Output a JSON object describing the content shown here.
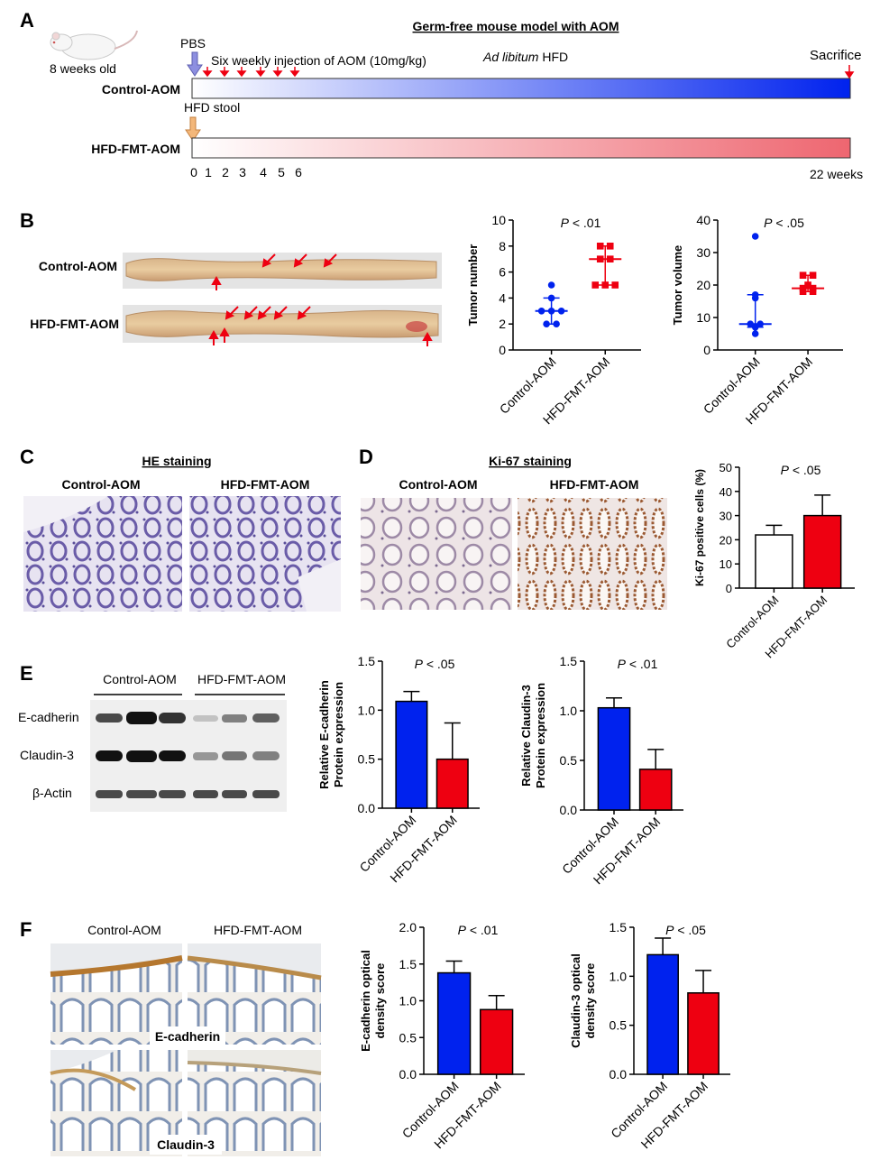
{
  "colors": {
    "blue": "#0022ee",
    "red": "#ee0011",
    "orange_arrow": "#f3b77a",
    "purple_arrow": "#8d8fe0"
  },
  "panelA": {
    "letter": "A",
    "title": "Germ-free mouse model with AOM",
    "age": "8 weeks old",
    "pbs": "PBS",
    "injection": "Six weekly injection of AOM (10mg/kg)",
    "adlib_italic": "Ad libitum",
    "adlib_rest": " HFD",
    "sacrifice": "Sacrifice",
    "control": "Control-AOM",
    "hfd_stool": "HFD stool",
    "hfd": "HFD-FMT-AOM",
    "weeks": [
      "0",
      "1",
      "2",
      "3",
      "4",
      "5",
      "6"
    ],
    "end_week": "22 weeks"
  },
  "panelB": {
    "letter": "B",
    "control": "Control-AOM",
    "hfd": "HFD-FMT-AOM"
  },
  "panelC": {
    "letter": "C",
    "title": "HE staining",
    "control": "Control-AOM",
    "hfd": "HFD-FMT-AOM"
  },
  "panelD": {
    "letter": "D",
    "title": "Ki-67 staining",
    "control": "Control-AOM",
    "hfd": "HFD-FMT-AOM"
  },
  "panelE": {
    "letter": "E",
    "control": "Control-AOM",
    "hfd": "HFD-FMT-AOM",
    "bands": [
      "E-cadherin",
      "Claudin-3",
      "β-Actin"
    ]
  },
  "panelF": {
    "letter": "F",
    "control": "Control-AOM",
    "hfd": "HFD-FMT-AOM",
    "label_ecad": "E-cadherin",
    "label_cld": "Claudin-3"
  },
  "chart_data": [
    {
      "id": "tumor_number",
      "type": "scatter",
      "ylabel": "Tumor number",
      "ylim": [
        0,
        10
      ],
      "yticks": [
        0,
        2,
        4,
        6,
        8,
        10
      ],
      "categories": [
        "Control-AOM",
        "HFD-FMT-AOM"
      ],
      "pvalue": "P < .01",
      "series": [
        {
          "points": [
            2,
            2,
            3,
            3,
            3,
            4,
            5
          ],
          "median": 3,
          "range": [
            2,
            4
          ]
        },
        {
          "points": [
            5,
            5,
            5,
            7,
            7,
            8,
            8
          ],
          "median": 7,
          "range": [
            5,
            8
          ]
        }
      ]
    },
    {
      "id": "tumor_volume",
      "type": "scatter",
      "ylabel": "Tumor volume",
      "ylim": [
        0,
        40
      ],
      "yticks": [
        0,
        10,
        20,
        30,
        40
      ],
      "categories": [
        "Control-AOM",
        "HFD-FMT-AOM"
      ],
      "pvalue": "P < .05",
      "series": [
        {
          "points": [
            5,
            7,
            8,
            8,
            16,
            17,
            35
          ],
          "median": 8,
          "range": [
            7,
            17
          ]
        },
        {
          "points": [
            18,
            18,
            19,
            19,
            20,
            23,
            23
          ],
          "median": 19,
          "range": [
            18,
            23
          ]
        }
      ]
    },
    {
      "id": "ki67",
      "type": "bar",
      "ylabel": "Ki-67 positive cells (%)",
      "ylim": [
        0,
        50
      ],
      "yticks": [
        0,
        10,
        20,
        30,
        40,
        50
      ],
      "categories": [
        "Control-AOM",
        "HFD-FMT-AOM"
      ],
      "values": [
        22,
        30
      ],
      "errors": [
        4,
        8.5
      ],
      "pvalue": "P < .05"
    },
    {
      "id": "ecad_protein",
      "type": "bar",
      "ylabel": [
        "Relative E-cadherin",
        "Protein expression"
      ],
      "ylim": [
        0,
        1.5
      ],
      "yticks": [
        "0.0",
        "0.5",
        "1.0",
        "1.5"
      ],
      "categories": [
        "Control-AOM",
        "HFD-FMT-AOM"
      ],
      "values": [
        1.09,
        0.5
      ],
      "errors": [
        0.1,
        0.37
      ],
      "pvalue": "P < .05"
    },
    {
      "id": "cld_protein",
      "type": "bar",
      "ylabel": [
        "Relative Claudin-3",
        "Protein expression"
      ],
      "ylim": [
        0,
        1.5
      ],
      "yticks": [
        "0.0",
        "0.5",
        "1.0",
        "1.5"
      ],
      "categories": [
        "Control-AOM",
        "HFD-FMT-AOM"
      ],
      "values": [
        1.03,
        0.41
      ],
      "errors": [
        0.1,
        0.2
      ],
      "pvalue": "P < .01"
    },
    {
      "id": "ecad_od",
      "type": "bar",
      "ylabel": [
        "E-cadherin optical",
        "density score"
      ],
      "ylim": [
        0,
        2.0
      ],
      "yticks": [
        "0.0",
        "0.5",
        "1.0",
        "1.5",
        "2.0"
      ],
      "categories": [
        "Control-AOM",
        "HFD-FMT-AOM"
      ],
      "values": [
        1.38,
        0.88
      ],
      "errors": [
        0.16,
        0.19
      ],
      "pvalue": "P < .01"
    },
    {
      "id": "cld_od",
      "type": "bar",
      "ylabel": [
        "Claudin-3 optical",
        "density score"
      ],
      "ylim": [
        0,
        1.5
      ],
      "yticks": [
        "0.0",
        "0.5",
        "1.0",
        "1.5"
      ],
      "categories": [
        "Control-AOM",
        "HFD-FMT-AOM"
      ],
      "values": [
        1.22,
        0.83
      ],
      "errors": [
        0.17,
        0.23
      ],
      "pvalue": "P < .05"
    }
  ]
}
